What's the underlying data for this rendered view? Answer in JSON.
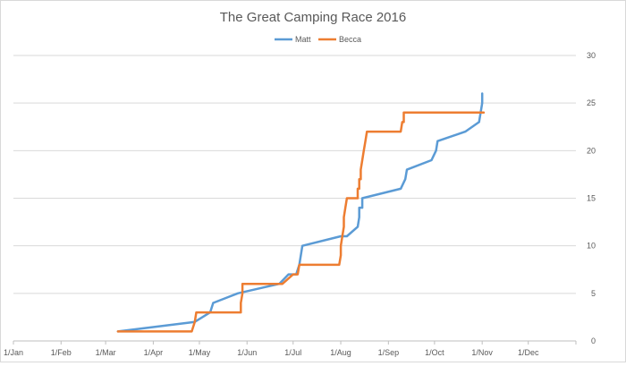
{
  "chart_data": {
    "type": "line",
    "title": "The Great Camping Race 2016",
    "xlabel": "",
    "ylabel": "",
    "x_axis": {
      "type": "date",
      "min": "2016-01-01",
      "max": "2017-01-01",
      "tick_dates": [
        "2016-01-01",
        "2016-02-01",
        "2016-03-01",
        "2016-04-01",
        "2016-05-01",
        "2016-06-01",
        "2016-07-01",
        "2016-08-01",
        "2016-09-01",
        "2016-10-01",
        "2016-11-01",
        "2016-12-01"
      ],
      "tick_labels": [
        "1/Jan",
        "1/Feb",
        "1/Mar",
        "1/Apr",
        "1/May",
        "1/Jun",
        "1/Jul",
        "1/Aug",
        "1/Sep",
        "1/Oct",
        "1/Nov",
        "1/Dec"
      ]
    },
    "y_axis": {
      "position": "right",
      "min": 0,
      "max": 30,
      "ticks": [
        0,
        5,
        10,
        15,
        20,
        25,
        30
      ]
    },
    "grid": "horizontal",
    "legend_position": "top",
    "series": [
      {
        "name": "Matt",
        "color": "#5b9bd5",
        "points": [
          [
            "2016-03-09",
            1
          ],
          [
            "2016-04-28",
            2
          ],
          [
            "2016-05-08",
            3
          ],
          [
            "2016-05-10",
            4
          ],
          [
            "2016-05-26",
            5
          ],
          [
            "2016-06-22",
            6
          ],
          [
            "2016-06-28",
            7
          ],
          [
            "2016-07-03",
            7
          ],
          [
            "2016-07-05",
            8
          ],
          [
            "2016-07-06",
            9
          ],
          [
            "2016-07-07",
            10
          ],
          [
            "2016-08-01",
            11
          ],
          [
            "2016-08-05",
            11
          ],
          [
            "2016-08-12",
            12
          ],
          [
            "2016-08-13",
            13
          ],
          [
            "2016-08-13",
            14
          ],
          [
            "2016-08-15",
            14
          ],
          [
            "2016-08-15",
            15
          ],
          [
            "2016-09-09",
            16
          ],
          [
            "2016-09-12",
            17
          ],
          [
            "2016-09-13",
            18
          ],
          [
            "2016-09-29",
            19
          ],
          [
            "2016-10-02",
            20
          ],
          [
            "2016-10-03",
            21
          ],
          [
            "2016-10-21",
            22
          ],
          [
            "2016-10-30",
            23
          ],
          [
            "2016-11-01",
            25
          ],
          [
            "2016-11-01",
            26
          ]
        ]
      },
      {
        "name": "Becca",
        "color": "#ed7d31",
        "points": [
          [
            "2016-03-09",
            1
          ],
          [
            "2016-04-26",
            1
          ],
          [
            "2016-04-28",
            2
          ],
          [
            "2016-04-29",
            3
          ],
          [
            "2016-05-28",
            3
          ],
          [
            "2016-05-28",
            4
          ],
          [
            "2016-05-29",
            5
          ],
          [
            "2016-05-29",
            6
          ],
          [
            "2016-06-24",
            6
          ],
          [
            "2016-07-01",
            7
          ],
          [
            "2016-07-04",
            7
          ],
          [
            "2016-07-05",
            8
          ],
          [
            "2016-07-31",
            8
          ],
          [
            "2016-08-01",
            9
          ],
          [
            "2016-08-01",
            10
          ],
          [
            "2016-08-02",
            11
          ],
          [
            "2016-08-03",
            12
          ],
          [
            "2016-08-03",
            13
          ],
          [
            "2016-08-04",
            14
          ],
          [
            "2016-08-05",
            15
          ],
          [
            "2016-08-12",
            15
          ],
          [
            "2016-08-12",
            16
          ],
          [
            "2016-08-13",
            16
          ],
          [
            "2016-08-13",
            17
          ],
          [
            "2016-08-14",
            17
          ],
          [
            "2016-08-14",
            18
          ],
          [
            "2016-08-15",
            19
          ],
          [
            "2016-08-16",
            20
          ],
          [
            "2016-08-17",
            21
          ],
          [
            "2016-08-18",
            22
          ],
          [
            "2016-09-09",
            22
          ],
          [
            "2016-09-10",
            23
          ],
          [
            "2016-09-11",
            23
          ],
          [
            "2016-09-11",
            24
          ],
          [
            "2016-11-02",
            24
          ]
        ]
      }
    ]
  }
}
